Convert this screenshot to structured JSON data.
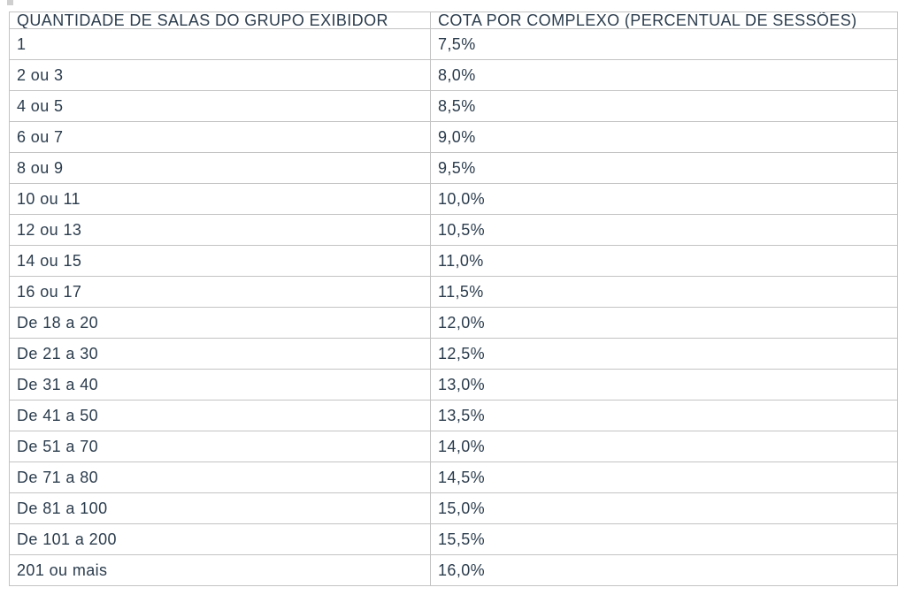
{
  "chart_data": {
    "type": "table",
    "title": "",
    "columns": [
      "QUANTIDADE DE SALAS DO GRUPO EXIBIDOR",
      "COTA POR COMPLEXO (PERCENTUAL DE SESSÕES)"
    ],
    "rows": [
      [
        "1",
        "7,5%"
      ],
      [
        "2 ou 3",
        "8,0%"
      ],
      [
        "4 ou 5",
        "8,5%"
      ],
      [
        "6 ou 7",
        "9,0%"
      ],
      [
        "8 ou 9",
        "9,5%"
      ],
      [
        "10 ou 11",
        "10,0%"
      ],
      [
        "12 ou 13",
        "10,5%"
      ],
      [
        "14 ou 15",
        "11,0%"
      ],
      [
        "16 ou 17",
        "11,5%"
      ],
      [
        "De 18 a 20",
        "12,0%"
      ],
      [
        "De 21 a 30",
        "12,5%"
      ],
      [
        "De 31 a 40",
        "13,0%"
      ],
      [
        "De 41 a 50",
        "13,5%"
      ],
      [
        "De 51 a 70",
        "14,0%"
      ],
      [
        "De 71 a 80",
        "14,5%"
      ],
      [
        "De 81 a 100",
        "15,0%"
      ],
      [
        "De 101 a 200",
        "15,5%"
      ],
      [
        "201 ou mais",
        "16,0%"
      ]
    ],
    "layout": {
      "grid": true,
      "header_row": true
    }
  },
  "colors": {
    "text": "#2b3c4d",
    "border": "#c3c3c3",
    "background": "#ffffff"
  }
}
